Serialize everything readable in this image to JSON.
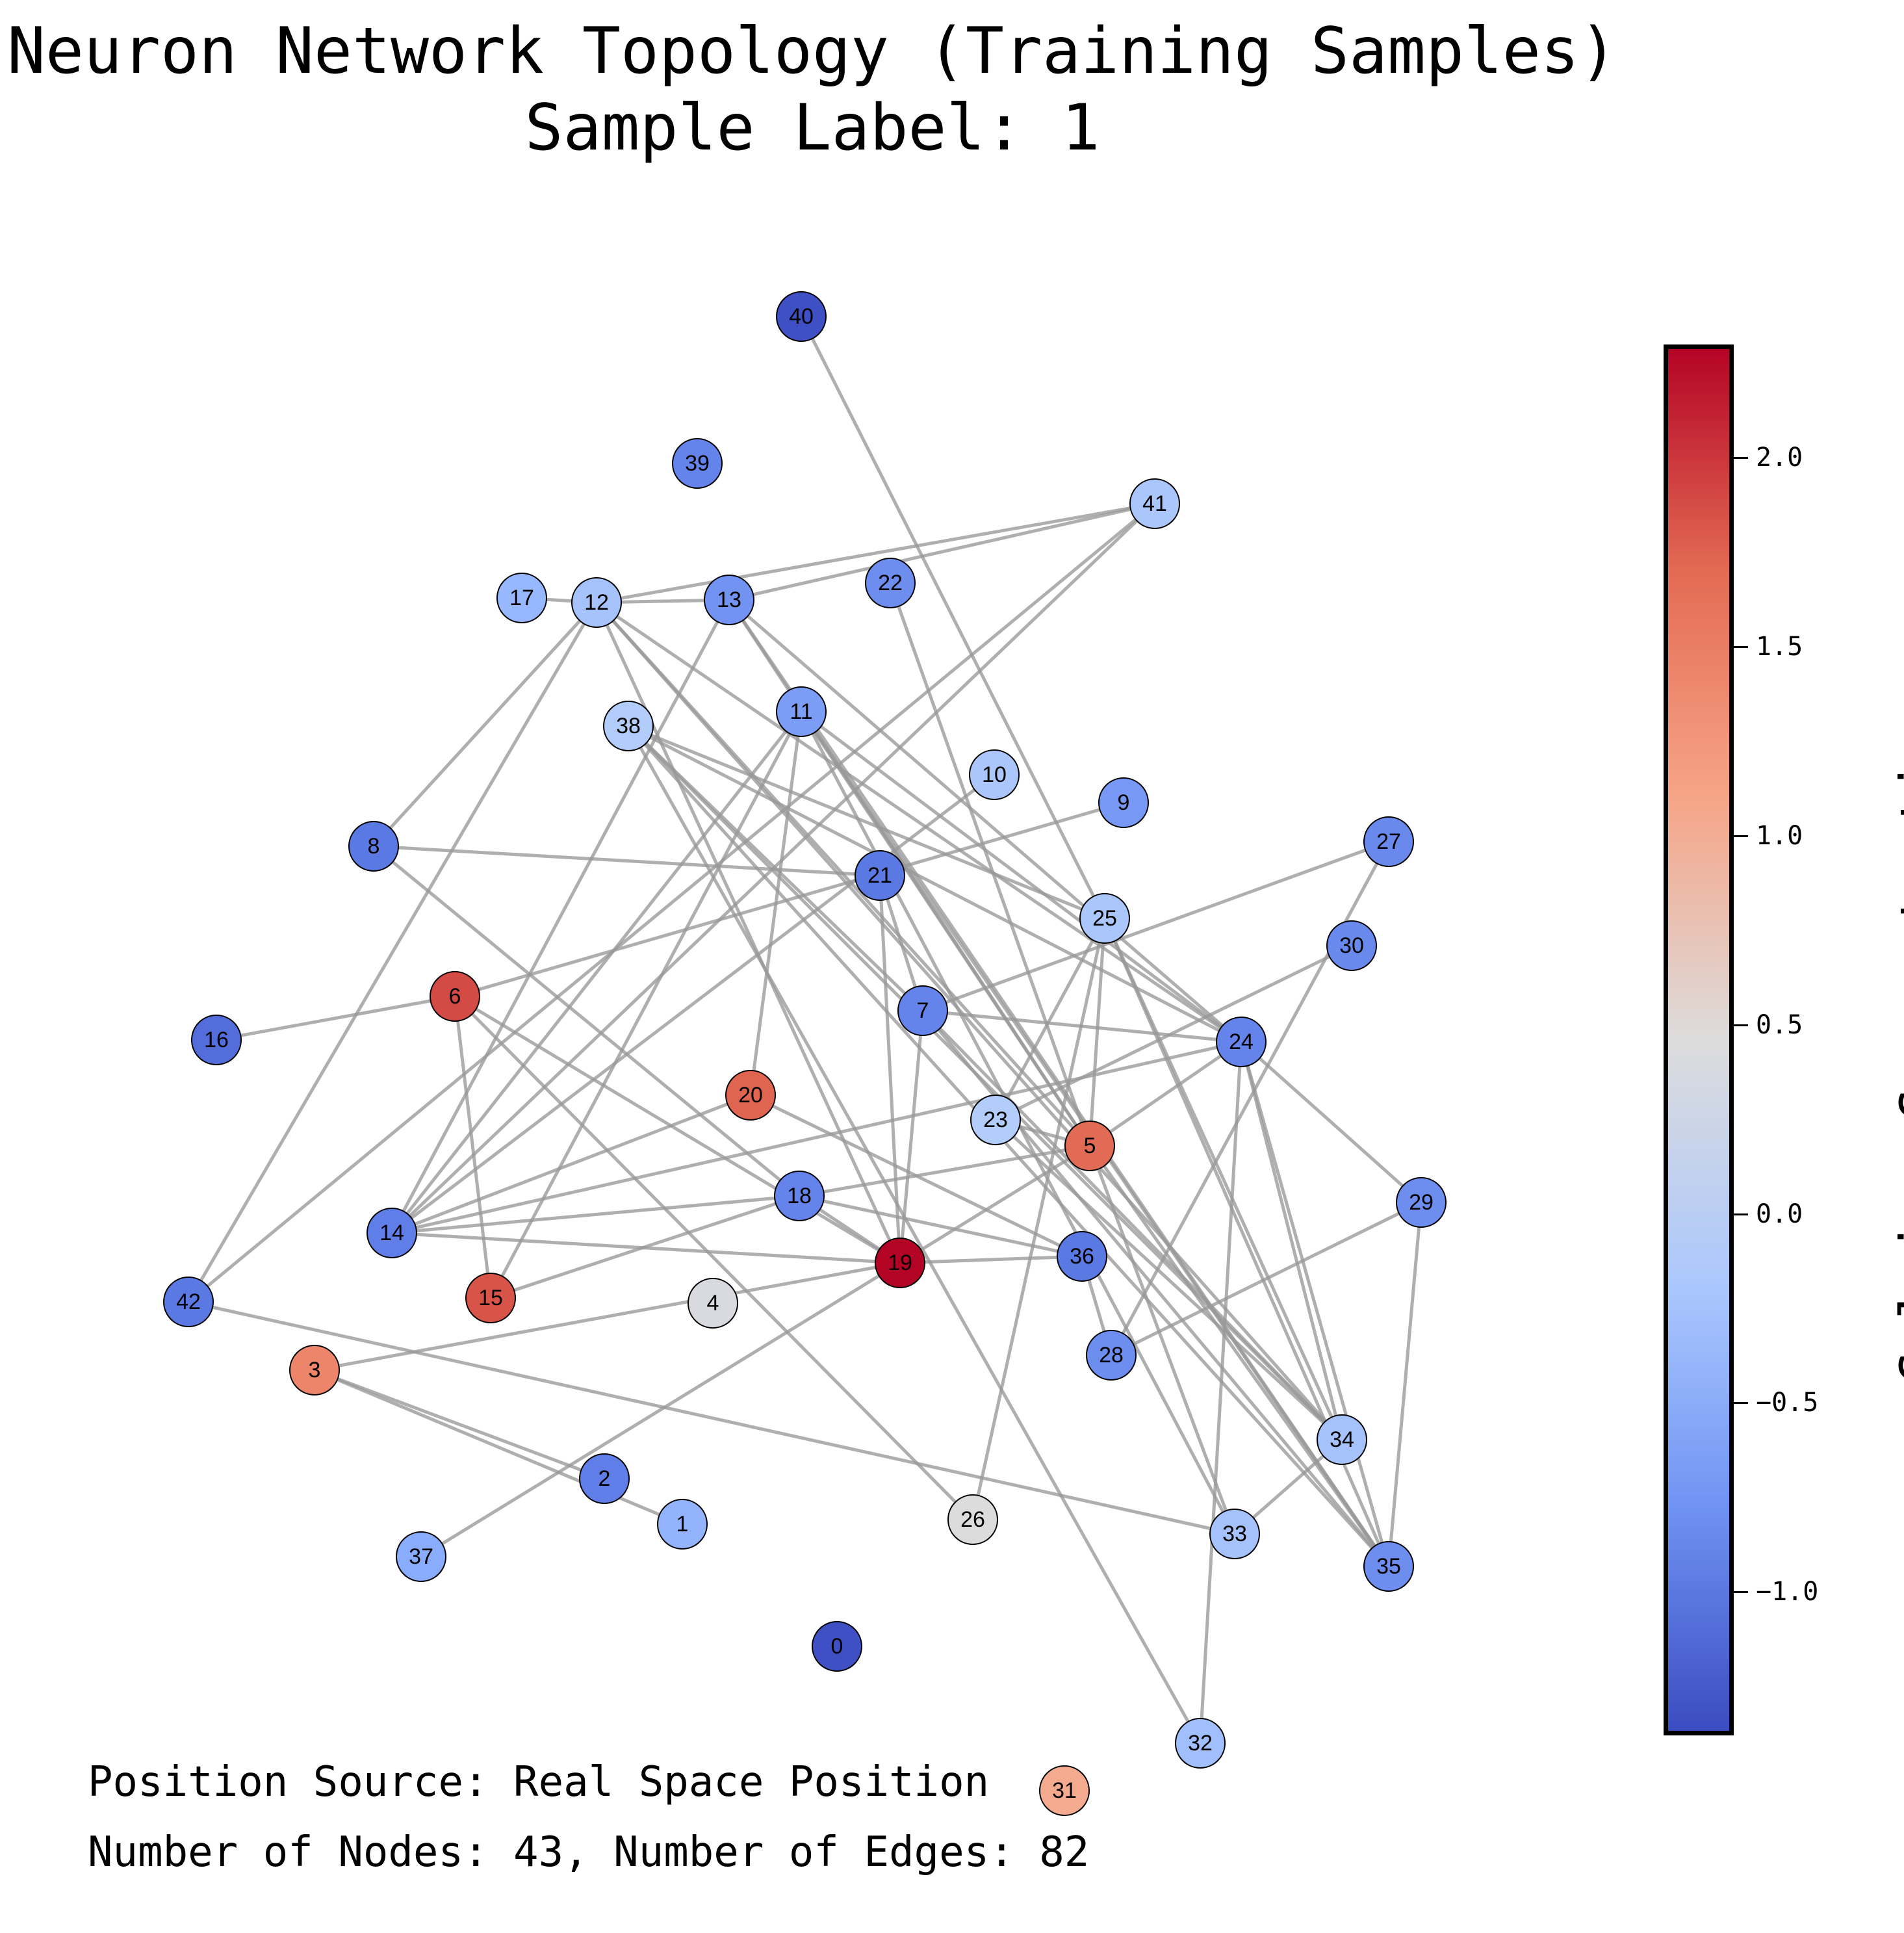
{
  "title": {
    "line1": "Neuron Network Topology (Training Samples)",
    "line2": "Sample Label: 1"
  },
  "colorbar": {
    "label": "Calcium Concentration",
    "range": [
      -1.38,
      2.3
    ],
    "ticks": [
      {
        "value": 2.0,
        "label": "2.0"
      },
      {
        "value": 1.5,
        "label": "1.5"
      },
      {
        "value": 1.0,
        "label": "1.0"
      },
      {
        "value": 0.5,
        "label": "0.5"
      },
      {
        "value": 0.0,
        "label": "0.0"
      },
      {
        "value": -0.5,
        "label": "−0.5"
      },
      {
        "value": -1.0,
        "label": "−1.0"
      }
    ],
    "colormap": "coolwarm"
  },
  "info": {
    "position_source": "Position Source: Real Space Position",
    "counts": "Number of Nodes: 43, Number of Edges: 82"
  },
  "nodes": [
    {
      "id": "0",
      "calcium": -1.35
    },
    {
      "id": "1",
      "calcium": -0.4
    },
    {
      "id": "2",
      "calcium": -0.95
    },
    {
      "id": "3",
      "calcium": 1.55
    },
    {
      "id": "4",
      "calcium": 0.4
    },
    {
      "id": "5",
      "calcium": 1.75
    },
    {
      "id": "6",
      "calcium": 1.95
    },
    {
      "id": "7",
      "calcium": -0.9
    },
    {
      "id": "8",
      "calcium": -1.0
    },
    {
      "id": "9",
      "calcium": -0.7
    },
    {
      "id": "10",
      "calcium": -0.15
    },
    {
      "id": "11",
      "calcium": -0.65
    },
    {
      "id": "12",
      "calcium": -0.2
    },
    {
      "id": "13",
      "calcium": -0.75
    },
    {
      "id": "14",
      "calcium": -0.95
    },
    {
      "id": "15",
      "calcium": 1.9
    },
    {
      "id": "16",
      "calcium": -1.1
    },
    {
      "id": "17",
      "calcium": -0.35
    },
    {
      "id": "18",
      "calcium": -0.9
    },
    {
      "id": "19",
      "calcium": 2.3
    },
    {
      "id": "20",
      "calcium": 1.8
    },
    {
      "id": "21",
      "calcium": -1.0
    },
    {
      "id": "22",
      "calcium": -0.8
    },
    {
      "id": "23",
      "calcium": -0.05
    },
    {
      "id": "24",
      "calcium": -0.9
    },
    {
      "id": "25",
      "calcium": -0.15
    },
    {
      "id": "26",
      "calcium": 0.45
    },
    {
      "id": "27",
      "calcium": -0.85
    },
    {
      "id": "28",
      "calcium": -0.8
    },
    {
      "id": "29",
      "calcium": -0.8
    },
    {
      "id": "30",
      "calcium": -0.85
    },
    {
      "id": "31",
      "calcium": 1.2
    },
    {
      "id": "32",
      "calcium": -0.25
    },
    {
      "id": "33",
      "calcium": -0.2
    },
    {
      "id": "34",
      "calcium": -0.2
    },
    {
      "id": "35",
      "calcium": -0.8
    },
    {
      "id": "36",
      "calcium": -1.0
    },
    {
      "id": "37",
      "calcium": -0.5
    },
    {
      "id": "38",
      "calcium": -0.05
    },
    {
      "id": "39",
      "calcium": -0.9
    },
    {
      "id": "40",
      "calcium": -1.35
    },
    {
      "id": "41",
      "calcium": -0.15
    },
    {
      "id": "42",
      "calcium": -1.0
    }
  ],
  "edges": [
    [
      "40",
      "25"
    ],
    [
      "13",
      "41"
    ],
    [
      "12",
      "41"
    ],
    [
      "17",
      "12"
    ],
    [
      "12",
      "13"
    ],
    [
      "12",
      "8"
    ],
    [
      "12",
      "42"
    ],
    [
      "12",
      "5"
    ],
    [
      "12",
      "34"
    ],
    [
      "12",
      "19"
    ],
    [
      "12",
      "24"
    ],
    [
      "13",
      "14"
    ],
    [
      "13",
      "5"
    ],
    [
      "13",
      "35"
    ],
    [
      "13",
      "24"
    ],
    [
      "11",
      "14"
    ],
    [
      "11",
      "15"
    ],
    [
      "11",
      "20"
    ],
    [
      "11",
      "24"
    ],
    [
      "11",
      "35"
    ],
    [
      "11",
      "5"
    ],
    [
      "11",
      "33"
    ],
    [
      "41",
      "14"
    ],
    [
      "41",
      "42"
    ],
    [
      "38",
      "25"
    ],
    [
      "38",
      "34"
    ],
    [
      "38",
      "35"
    ],
    [
      "38",
      "24"
    ],
    [
      "38",
      "7"
    ],
    [
      "38",
      "32"
    ],
    [
      "22",
      "5"
    ],
    [
      "10",
      "14"
    ],
    [
      "9",
      "6"
    ],
    [
      "6",
      "16"
    ],
    [
      "8",
      "21"
    ],
    [
      "8",
      "18"
    ],
    [
      "21",
      "19"
    ],
    [
      "21",
      "7"
    ],
    [
      "27",
      "7"
    ],
    [
      "27",
      "28"
    ],
    [
      "30",
      "23"
    ],
    [
      "25",
      "5"
    ],
    [
      "25",
      "23"
    ],
    [
      "25",
      "34"
    ],
    [
      "25",
      "35"
    ],
    [
      "25",
      "26"
    ],
    [
      "7",
      "24"
    ],
    [
      "7",
      "19"
    ],
    [
      "7",
      "34"
    ],
    [
      "7",
      "35"
    ],
    [
      "6",
      "15"
    ],
    [
      "6",
      "19"
    ],
    [
      "6",
      "26"
    ],
    [
      "24",
      "35"
    ],
    [
      "24",
      "34"
    ],
    [
      "24",
      "29"
    ],
    [
      "24",
      "5"
    ],
    [
      "24",
      "14"
    ],
    [
      "24",
      "32"
    ],
    [
      "20",
      "36"
    ],
    [
      "20",
      "14"
    ],
    [
      "23",
      "5"
    ],
    [
      "23",
      "34"
    ],
    [
      "5",
      "35"
    ],
    [
      "5",
      "33"
    ],
    [
      "5",
      "19"
    ],
    [
      "18",
      "14"
    ],
    [
      "18",
      "19"
    ],
    [
      "18",
      "36"
    ],
    [
      "18",
      "15"
    ],
    [
      "18",
      "5"
    ],
    [
      "14",
      "19"
    ],
    [
      "19",
      "36"
    ],
    [
      "19",
      "37"
    ],
    [
      "19",
      "3"
    ],
    [
      "36",
      "28"
    ],
    [
      "29",
      "35"
    ],
    [
      "29",
      "28"
    ],
    [
      "3",
      "2"
    ],
    [
      "3",
      "1"
    ],
    [
      "42",
      "33"
    ],
    [
      "34",
      "33"
    ]
  ]
}
